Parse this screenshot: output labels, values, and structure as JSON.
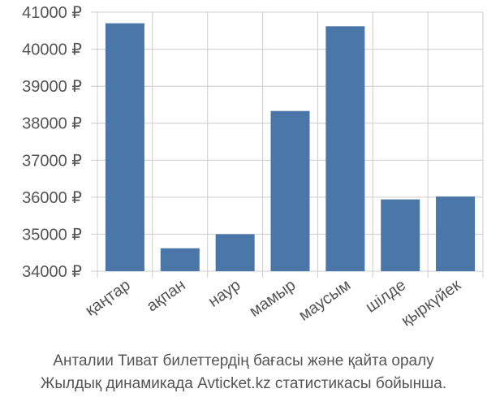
{
  "chart_data": {
    "type": "bar",
    "categories": [
      "қаңтар",
      "ақпан",
      "наур",
      "мамыр",
      "маусым",
      "шілде",
      "қыркүйек"
    ],
    "values": [
      40700,
      34620,
      35000,
      38330,
      40620,
      35940,
      36020
    ],
    "ylim": [
      34000,
      41000
    ],
    "yticks": [
      "34000 ₽",
      "35000 ₽",
      "36000 ₽",
      "37000 ₽",
      "38000 ₽",
      "39000 ₽",
      "40000 ₽",
      "41000 ₽"
    ],
    "grid": true,
    "colors": {
      "bar": "#4a76a8",
      "grid": "#cccccc",
      "text": "#555555"
    }
  },
  "caption": {
    "line1": "Анталии Тиват билеттердің бағасы және қайта оралу",
    "line2": "Жылдық динамикада Avticket.kz статистикасы бойынша."
  }
}
